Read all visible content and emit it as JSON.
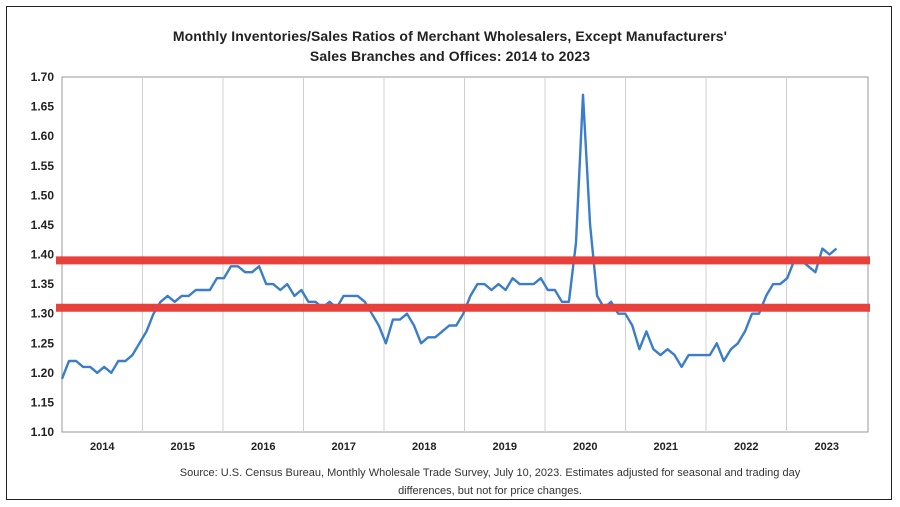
{
  "chart_data": {
    "type": "line",
    "title": "Monthly Inventories/Sales Ratios of Merchant Wholesalers, Except Manufacturers'",
    "subtitle": "Sales Branches and Offices: 2014 to 2023",
    "source": "Source: U.S. Census Bureau, Monthly Wholesale Trade Survey, July 10, 2023. Estimates adjusted for seasonal and trading day",
    "source_line2": "differences, but not for price changes.",
    "ylim": [
      1.1,
      1.7
    ],
    "yticks": [
      "1.70",
      "1.65",
      "1.60",
      "1.55",
      "1.50",
      "1.45",
      "1.40",
      "1.35",
      "1.30",
      "1.25",
      "1.20",
      "1.15",
      "1.10"
    ],
    "ytick_values": [
      1.7,
      1.65,
      1.6,
      1.55,
      1.5,
      1.45,
      1.4,
      1.35,
      1.3,
      1.25,
      1.2,
      1.15,
      1.1
    ],
    "years": [
      "2014",
      "2015",
      "2016",
      "2017",
      "2018",
      "2019",
      "2020",
      "2021",
      "2022",
      "2023"
    ],
    "x_start_year": 2014,
    "grid": "vertical",
    "series": [
      {
        "color": "#3a7dc9",
        "values": [
          1.19,
          1.22,
          1.22,
          1.21,
          1.21,
          1.2,
          1.21,
          1.2,
          1.22,
          1.22,
          1.23,
          1.25,
          1.27,
          1.3,
          1.32,
          1.33,
          1.32,
          1.33,
          1.33,
          1.34,
          1.34,
          1.34,
          1.36,
          1.36,
          1.38,
          1.38,
          1.37,
          1.37,
          1.38,
          1.35,
          1.35,
          1.34,
          1.35,
          1.33,
          1.34,
          1.32,
          1.32,
          1.31,
          1.32,
          1.31,
          1.33,
          1.33,
          1.33,
          1.32,
          1.3,
          1.28,
          1.25,
          1.29,
          1.29,
          1.3,
          1.28,
          1.25,
          1.26,
          1.26,
          1.27,
          1.28,
          1.28,
          1.3,
          1.33,
          1.35,
          1.35,
          1.34,
          1.35,
          1.34,
          1.36,
          1.35,
          1.35,
          1.35,
          1.36,
          1.34,
          1.34,
          1.32,
          1.32,
          1.42,
          1.67,
          1.45,
          1.33,
          1.31,
          1.32,
          1.3,
          1.3,
          1.28,
          1.24,
          1.27,
          1.24,
          1.23,
          1.24,
          1.23,
          1.21,
          1.23,
          1.23,
          1.23,
          1.23,
          1.25,
          1.22,
          1.24,
          1.25,
          1.27,
          1.3,
          1.3,
          1.33,
          1.35,
          1.35,
          1.36,
          1.39,
          1.39,
          1.38,
          1.37,
          1.41,
          1.4,
          1.41
        ]
      }
    ],
    "reference_lines": [
      {
        "y": 1.39,
        "color": "#e8413c"
      },
      {
        "y": 1.31,
        "color": "#e8413c"
      }
    ]
  }
}
